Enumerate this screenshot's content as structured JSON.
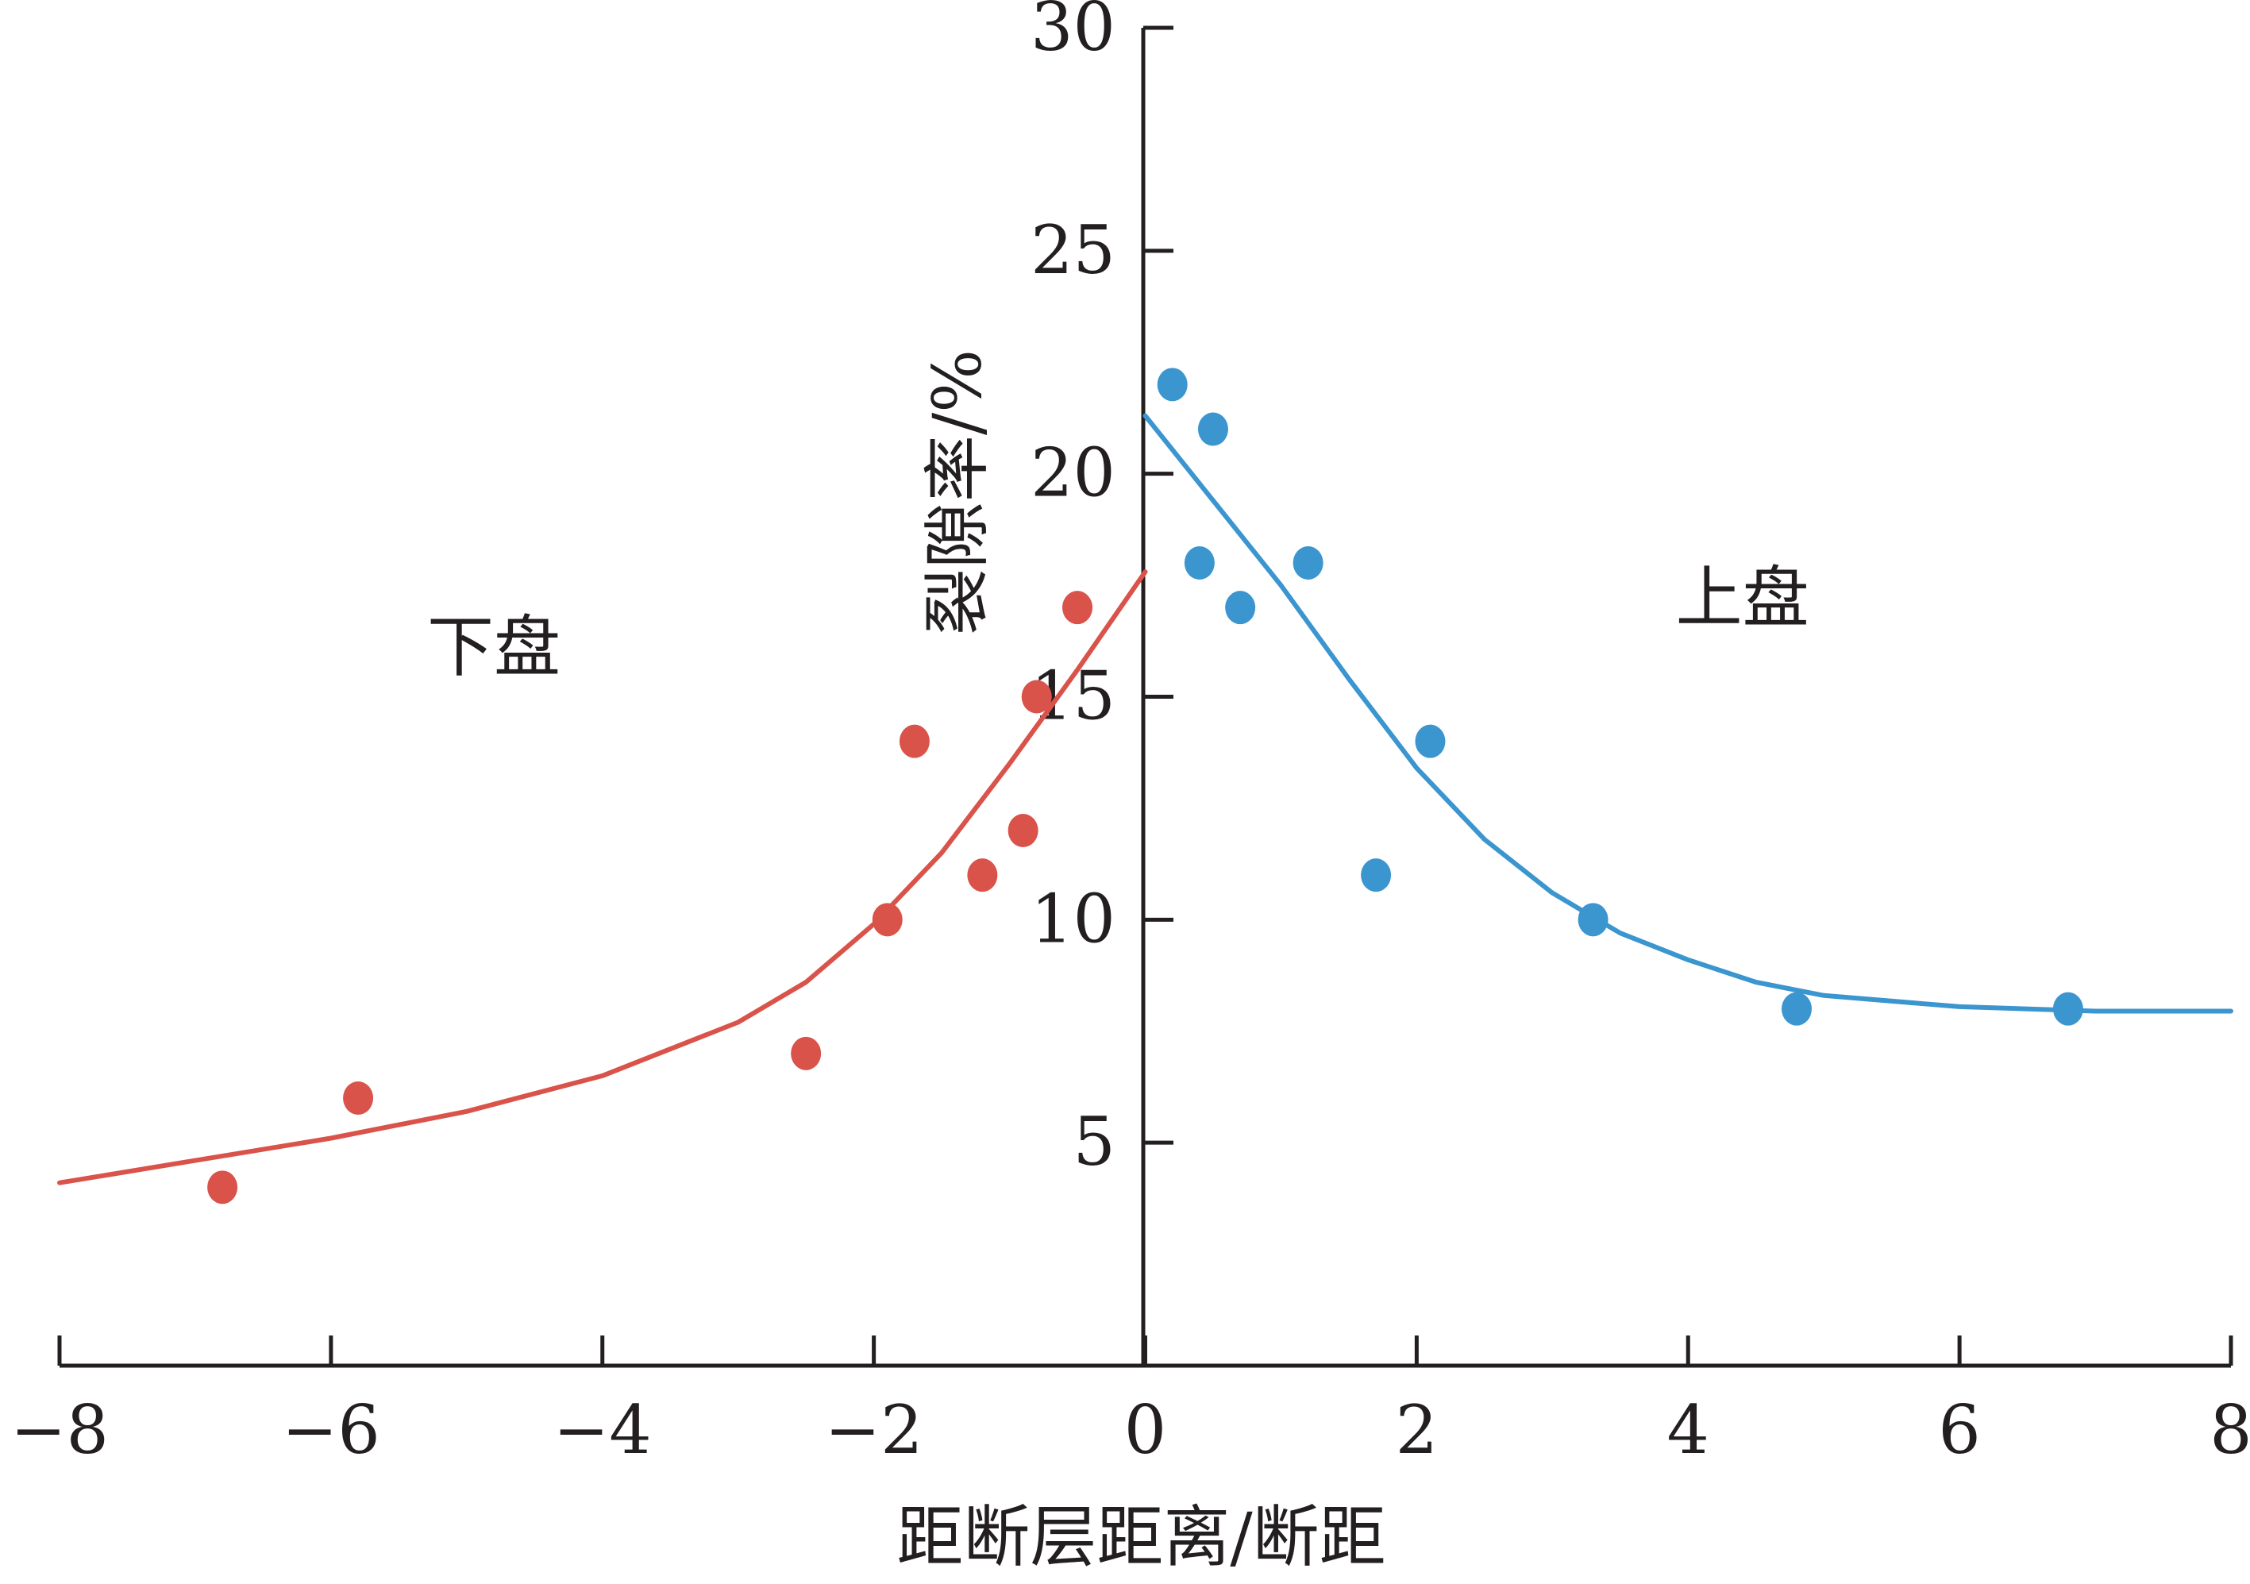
{
  "chart_data": {
    "type": "scatter",
    "xlabel": "距断层距离/断距",
    "ylabel": "裂隙率/%",
    "xlim": [
      -8,
      8
    ],
    "ylim": [
      0,
      30
    ],
    "x_ticks": [
      -8,
      -6,
      -4,
      -2,
      0,
      2,
      4,
      6,
      8
    ],
    "x_tick_labels": [
      "−8",
      "−6",
      "−4",
      "−2",
      "0",
      "2",
      "4",
      "6",
      "8"
    ],
    "y_ticks": [
      5,
      10,
      15,
      20,
      25,
      30
    ],
    "y_tick_labels": [
      "5",
      "10",
      "15",
      "20",
      "25",
      "30"
    ],
    "grid": false,
    "annotations": [
      {
        "text": "下盘",
        "x": -4.8,
        "y": 15.6
      },
      {
        "text": "上盘",
        "x": 4.4,
        "y": 16.7
      }
    ],
    "series": [
      {
        "color": "#d9534a",
        "points": [
          {
            "x": -6.8,
            "y": 4
          },
          {
            "x": -5.8,
            "y": 6
          },
          {
            "x": -2.5,
            "y": 7
          },
          {
            "x": -1.9,
            "y": 10
          },
          {
            "x": -1.7,
            "y": 14
          },
          {
            "x": -1.2,
            "y": 11
          },
          {
            "x": -0.9,
            "y": 12
          },
          {
            "x": -0.8,
            "y": 15
          },
          {
            "x": -0.5,
            "y": 17
          }
        ],
        "fit": [
          {
            "x": -8,
            "y": 4.1
          },
          {
            "x": -7,
            "y": 4.6
          },
          {
            "x": -6,
            "y": 5.1
          },
          {
            "x": -5,
            "y": 5.7
          },
          {
            "x": -4,
            "y": 6.5
          },
          {
            "x": -3,
            "y": 7.7
          },
          {
            "x": -2.5,
            "y": 8.6
          },
          {
            "x": -2,
            "y": 9.9
          },
          {
            "x": -1.5,
            "y": 11.5
          },
          {
            "x": -1,
            "y": 13.5
          },
          {
            "x": -0.5,
            "y": 15.6
          },
          {
            "x": 0,
            "y": 17.8
          }
        ]
      },
      {
        "color": "#3b95cf",
        "points": [
          {
            "x": 0.2,
            "y": 22
          },
          {
            "x": 0.5,
            "y": 21
          },
          {
            "x": 0.4,
            "y": 18
          },
          {
            "x": 0.7,
            "y": 17
          },
          {
            "x": 1.2,
            "y": 18
          },
          {
            "x": 1.7,
            "y": 11
          },
          {
            "x": 2.1,
            "y": 14
          },
          {
            "x": 3.3,
            "y": 10
          },
          {
            "x": 4.8,
            "y": 8
          },
          {
            "x": 6.8,
            "y": 8
          }
        ],
        "fit": [
          {
            "x": 0,
            "y": 21.3
          },
          {
            "x": 0.5,
            "y": 19.4
          },
          {
            "x": 1,
            "y": 17.5
          },
          {
            "x": 1.5,
            "y": 15.4
          },
          {
            "x": 2,
            "y": 13.4
          },
          {
            "x": 2.5,
            "y": 11.8
          },
          {
            "x": 3,
            "y": 10.6
          },
          {
            "x": 3.5,
            "y": 9.7
          },
          {
            "x": 4,
            "y": 9.1
          },
          {
            "x": 4.5,
            "y": 8.6
          },
          {
            "x": 5,
            "y": 8.3
          },
          {
            "x": 6,
            "y": 8.05
          },
          {
            "x": 7,
            "y": 7.95
          },
          {
            "x": 8,
            "y": 7.95
          }
        ]
      }
    ]
  }
}
